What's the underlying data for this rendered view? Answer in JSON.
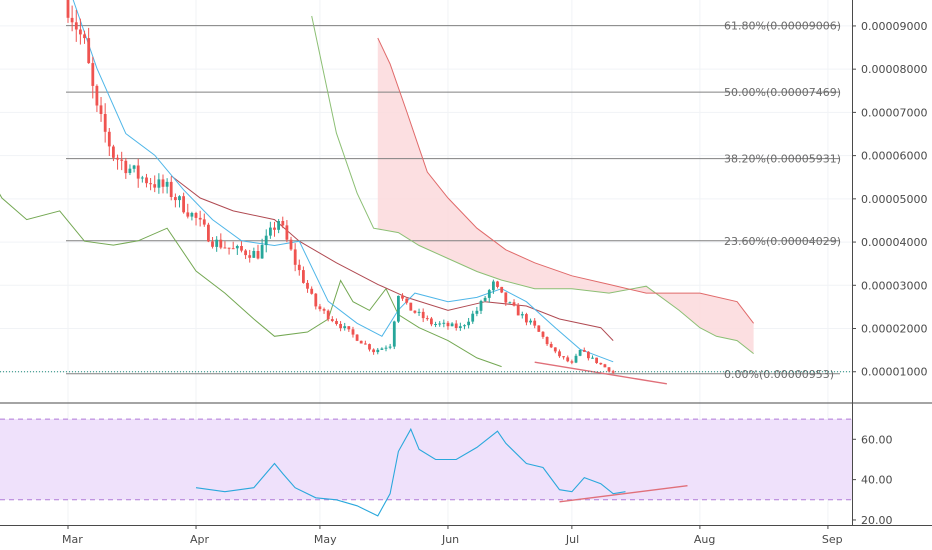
{
  "colors": {
    "up": "#26a69a",
    "down": "#ef5350",
    "conversion": "#4fb6e8",
    "base": "#b04a52",
    "lagging": "#74a853",
    "span_a": "#8cbf74",
    "span_b": "#e06a6a",
    "cloud_bear": "#fbd9dc",
    "fib": "#808080",
    "rsi": "#2aa8dc",
    "rsi_band": "#efe1fb",
    "rsi_level": "#b07ad8",
    "trend": "#e0707a",
    "last_price": "#1b8a7a"
  },
  "chart_data": [
    {
      "type": "candlestick",
      "x_ticks": [
        "Mar",
        "Apr",
        "May",
        "Jun",
        "Jul",
        "Aug",
        "Sep"
      ],
      "y_ticks": [
        "0.00009000",
        "0.00008000",
        "0.00007000",
        "0.00006000",
        "0.00005000",
        "0.00004000",
        "0.00003000",
        "0.00002000",
        "0.00001000"
      ],
      "ylim": [
        3e-06,
        9.6e-05
      ],
      "fib_levels": [
        {
          "label": "61.80%(0.00009006)",
          "value": 9.006e-05
        },
        {
          "label": "50.00%(0.00007469)",
          "value": 7.469e-05
        },
        {
          "label": "38.20%(0.00005931)",
          "value": 5.931e-05
        },
        {
          "label": "23.60%(0.00004029)",
          "value": 4.029e-05
        },
        {
          "label": "0.00%(0.00000953)",
          "value": 9.53e-06
        }
      ],
      "last_price": 1e-05,
      "price_anchors": [
        [
          "2020-03-01",
          9.52e-05
        ],
        [
          "2020-03-05",
          8.53e-05
        ],
        [
          "2020-03-08",
          7.01e-05
        ],
        [
          "2020-03-12",
          6.02e-05
        ],
        [
          "2020-03-18",
          5.53e-05
        ],
        [
          "2020-03-25",
          5.23e-05
        ],
        [
          "2020-04-01",
          4.53e-05
        ],
        [
          "2020-04-05",
          4.03e-05
        ],
        [
          "2020-04-10",
          3.82e-05
        ],
        [
          "2020-04-16",
          3.72e-05
        ],
        [
          "2020-04-21",
          4.52e-05
        ],
        [
          "2020-04-25",
          3.52e-05
        ],
        [
          "2020-04-30",
          2.52e-05
        ],
        [
          "2020-05-08",
          1.92e-05
        ],
        [
          "2020-05-14",
          1.48e-05
        ],
        [
          "2020-05-18",
          1.62e-05
        ],
        [
          "2020-05-20",
          2.82e-05
        ],
        [
          "2020-05-22",
          2.51e-05
        ],
        [
          "2020-05-28",
          2.12e-05
        ],
        [
          "2020-06-04",
          2.02e-05
        ],
        [
          "2020-06-08",
          2.42e-05
        ],
        [
          "2020-06-12",
          3.02e-05
        ],
        [
          "2020-06-15",
          2.62e-05
        ],
        [
          "2020-06-22",
          2.03e-05
        ],
        [
          "2020-06-27",
          1.43e-05
        ],
        [
          "2020-07-01",
          1.18e-05
        ],
        [
          "2020-07-03",
          1.48e-05
        ],
        [
          "2020-07-07",
          1.23e-05
        ],
        [
          "2020-07-11",
          9.8e-06
        ]
      ],
      "conversion_line": [
        [
          "2020-03-01",
          9.95e-05
        ],
        [
          "2020-03-08",
          8.02e-05
        ],
        [
          "2020-03-15",
          6.51e-05
        ],
        [
          "2020-03-22",
          6.01e-05
        ],
        [
          "2020-03-29",
          5.21e-05
        ],
        [
          "2020-04-05",
          4.52e-05
        ],
        [
          "2020-04-12",
          4.03e-05
        ],
        [
          "2020-04-20",
          3.92e-05
        ],
        [
          "2020-04-26",
          4.02e-05
        ],
        [
          "2020-05-03",
          2.63e-05
        ],
        [
          "2020-05-10",
          2.12e-05
        ],
        [
          "2020-05-16",
          1.82e-05
        ],
        [
          "2020-05-20",
          2.43e-05
        ],
        [
          "2020-05-24",
          2.82e-05
        ],
        [
          "2020-06-01",
          2.62e-05
        ],
        [
          "2020-06-08",
          2.72e-05
        ],
        [
          "2020-06-14",
          2.92e-05
        ],
        [
          "2020-06-20",
          2.62e-05
        ],
        [
          "2020-06-27",
          2.02e-05
        ],
        [
          "2020-07-03",
          1.52e-05
        ],
        [
          "2020-07-11",
          1.23e-05
        ]
      ],
      "base_line": [
        [
          "2020-03-26",
          5.53e-05
        ],
        [
          "2020-04-02",
          5.02e-05
        ],
        [
          "2020-04-10",
          4.72e-05
        ],
        [
          "2020-04-20",
          4.52e-05
        ],
        [
          "2020-04-26",
          4.02e-05
        ],
        [
          "2020-05-05",
          3.52e-05
        ],
        [
          "2020-05-15",
          3.02e-05
        ],
        [
          "2020-05-22",
          2.72e-05
        ],
        [
          "2020-06-01",
          2.42e-05
        ],
        [
          "2020-06-10",
          2.62e-05
        ],
        [
          "2020-06-20",
          2.52e-05
        ],
        [
          "2020-06-28",
          2.22e-05
        ],
        [
          "2020-07-08",
          2.02e-05
        ],
        [
          "2020-07-11",
          1.72e-05
        ]
      ],
      "lagging_span": [
        [
          "2020-02-01",
          5.82e-05
        ],
        [
          "2020-02-08",
          6.02e-05
        ],
        [
          "2020-02-14",
          5.02e-05
        ],
        [
          "2020-02-20",
          4.52e-05
        ],
        [
          "2020-02-28",
          4.72e-05
        ],
        [
          "2020-03-05",
          4.02e-05
        ],
        [
          "2020-03-12",
          3.93e-05
        ],
        [
          "2020-03-18",
          4.03e-05
        ],
        [
          "2020-03-25",
          4.32e-05
        ],
        [
          "2020-04-01",
          3.33e-05
        ],
        [
          "2020-04-08",
          2.82e-05
        ],
        [
          "2020-04-15",
          2.22e-05
        ],
        [
          "2020-04-20",
          1.82e-05
        ],
        [
          "2020-04-28",
          1.92e-05
        ],
        [
          "2020-05-03",
          2.22e-05
        ],
        [
          "2020-05-06",
          3.11e-05
        ],
        [
          "2020-05-09",
          2.62e-05
        ],
        [
          "2020-05-13",
          2.42e-05
        ],
        [
          "2020-05-17",
          2.92e-05
        ],
        [
          "2020-05-20",
          2.32e-05
        ],
        [
          "2020-05-25",
          2.02e-05
        ],
        [
          "2020-06-01",
          1.72e-05
        ],
        [
          "2020-06-08",
          1.32e-05
        ],
        [
          "2020-06-14",
          1.12e-05
        ]
      ],
      "span_a": [
        [
          "2020-04-29",
          9.23e-05
        ],
        [
          "2020-05-05",
          6.52e-05
        ],
        [
          "2020-05-10",
          5.13e-05
        ],
        [
          "2020-05-14",
          4.32e-05
        ],
        [
          "2020-05-20",
          4.22e-05
        ],
        [
          "2020-05-25",
          3.92e-05
        ],
        [
          "2020-06-01",
          3.62e-05
        ],
        [
          "2020-06-08",
          3.32e-05
        ],
        [
          "2020-06-14",
          3.12e-05
        ],
        [
          "2020-06-22",
          2.92e-05
        ],
        [
          "2020-07-01",
          2.92e-05
        ],
        [
          "2020-07-10",
          2.82e-05
        ],
        [
          "2020-07-19",
          2.98e-05
        ],
        [
          "2020-07-27",
          2.42e-05
        ],
        [
          "2020-08-01",
          2.02e-05
        ],
        [
          "2020-08-05",
          1.82e-05
        ],
        [
          "2020-08-10",
          1.72e-05
        ],
        [
          "2020-08-14",
          1.42e-05
        ]
      ],
      "span_b": [
        [
          "2020-05-15",
          8.72e-05
        ],
        [
          "2020-05-18",
          8.12e-05
        ],
        [
          "2020-05-22",
          7.02e-05
        ],
        [
          "2020-05-27",
          5.62e-05
        ],
        [
          "2020-06-01",
          5.02e-05
        ],
        [
          "2020-06-08",
          4.32e-05
        ],
        [
          "2020-06-15",
          3.82e-05
        ],
        [
          "2020-06-22",
          3.52e-05
        ],
        [
          "2020-07-01",
          3.22e-05
        ],
        [
          "2020-07-10",
          3.02e-05
        ],
        [
          "2020-07-19",
          2.82e-05
        ],
        [
          "2020-08-01",
          2.82e-05
        ],
        [
          "2020-08-10",
          2.62e-05
        ],
        [
          "2020-08-14",
          2.12e-05
        ]
      ],
      "price_trendline": [
        [
          "2020-06-22",
          1.22e-05
        ],
        [
          "2020-07-24",
          7.2e-06
        ]
      ]
    },
    {
      "type": "line",
      "name": "RSI",
      "y_ticks": [
        "60.00",
        "40.00",
        "20.00"
      ],
      "ylim": [
        17.5,
        77.5
      ],
      "overbought": 70,
      "oversold": 30,
      "values": [
        [
          "2020-04-01",
          36
        ],
        [
          "2020-04-08",
          34
        ],
        [
          "2020-04-15",
          36
        ],
        [
          "2020-04-20",
          48
        ],
        [
          "2020-04-22",
          43
        ],
        [
          "2020-04-25",
          36
        ],
        [
          "2020-04-30",
          31
        ],
        [
          "2020-05-05",
          30
        ],
        [
          "2020-05-10",
          27
        ],
        [
          "2020-05-15",
          22
        ],
        [
          "2020-05-18",
          33
        ],
        [
          "2020-05-20",
          54
        ],
        [
          "2020-05-23",
          65
        ],
        [
          "2020-05-25",
          55
        ],
        [
          "2020-05-29",
          50
        ],
        [
          "2020-06-03",
          50
        ],
        [
          "2020-06-08",
          56
        ],
        [
          "2020-06-13",
          64
        ],
        [
          "2020-06-15",
          58
        ],
        [
          "2020-06-20",
          48
        ],
        [
          "2020-06-24",
          46
        ],
        [
          "2020-06-28",
          35
        ],
        [
          "2020-07-01",
          34
        ],
        [
          "2020-07-04",
          41
        ],
        [
          "2020-07-08",
          38
        ],
        [
          "2020-07-11",
          33
        ],
        [
          "2020-07-14",
          34
        ]
      ],
      "trendline": [
        [
          "2020-06-28",
          29
        ],
        [
          "2020-07-29",
          37
        ]
      ]
    }
  ]
}
